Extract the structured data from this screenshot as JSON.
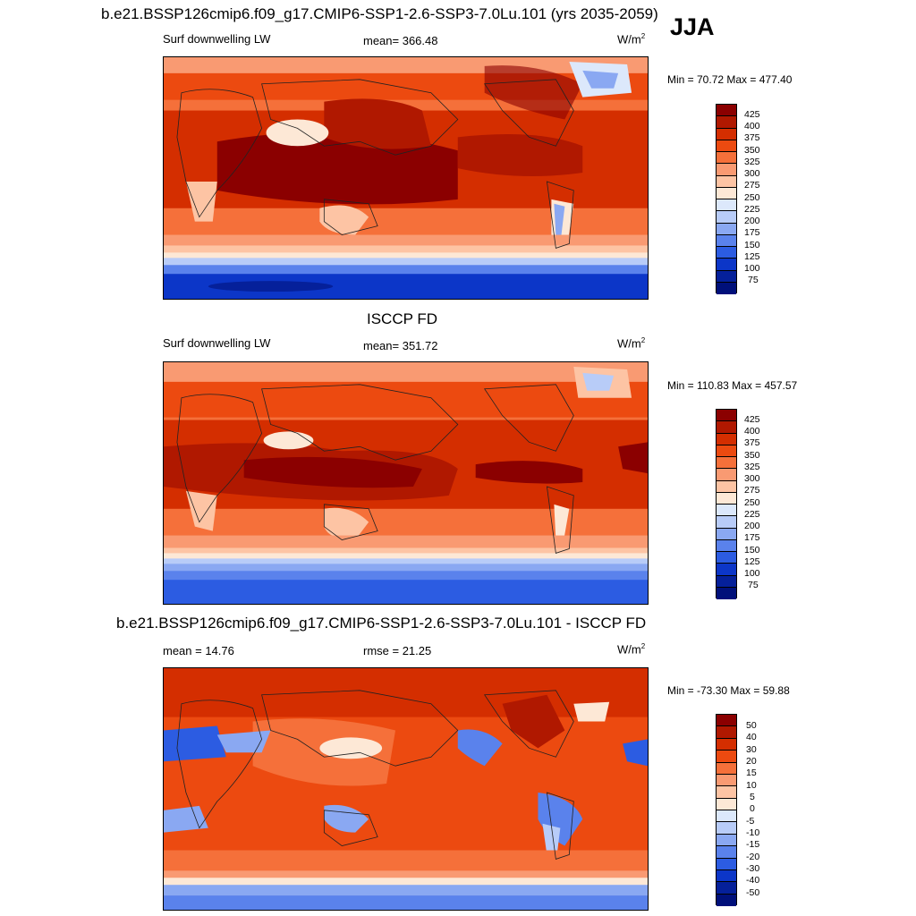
{
  "season": "JJA",
  "panels": [
    {
      "title": "b.e21.BSSP126cmip6.f09_g17.CMIP6-SSP1-2.6-SSP3-7.0Lu.101 (yrs 2035-2059)",
      "left_label": "Surf downwelling LW",
      "center_label": "mean= 366.48",
      "units_base": "W/m",
      "units_exp": "2",
      "minmax": "Min =  70.72 Max = 477.40",
      "colorbar_ticks": [
        "425",
        "400",
        "375",
        "350",
        "325",
        "300",
        "275",
        "250",
        "225",
        "200",
        "175",
        "150",
        "125",
        "100",
        "75"
      ]
    },
    {
      "title": "ISCCP FD",
      "left_label": "Surf downwelling LW",
      "center_label": "mean= 351.72",
      "units_base": "W/m",
      "units_exp": "2",
      "minmax": "Min = 110.83 Max = 457.57",
      "colorbar_ticks": [
        "425",
        "400",
        "375",
        "350",
        "325",
        "300",
        "275",
        "250",
        "225",
        "200",
        "175",
        "150",
        "125",
        "100",
        "75"
      ]
    },
    {
      "title": "b.e21.BSSP126cmip6.f09_g17.CMIP6-SSP1-2.6-SSP3-7.0Lu.101 - ISCCP FD",
      "left_label": "mean =  14.76",
      "center_label": "rmse =  21.25",
      "units_base": "W/m",
      "units_exp": "2",
      "minmax": "Min = -73.30 Max =  59.88",
      "colorbar_ticks": [
        "50",
        "40",
        "30",
        "20",
        "15",
        "10",
        "5",
        "0",
        "-5",
        "-10",
        "-15",
        "-20",
        "-30",
        "-40",
        "-50"
      ]
    }
  ],
  "colors": {
    "palette": [
      "#8b0000",
      "#b01800",
      "#d42e00",
      "#ec4a10",
      "#f5703a",
      "#f99a72",
      "#fdc4a4",
      "#fde8d6",
      "#dce8fb",
      "#b8ccf8",
      "#8aa8f2",
      "#5a82ec",
      "#2c5ce2",
      "#0c36c8",
      "#05209a",
      "#00107a"
    ]
  }
}
